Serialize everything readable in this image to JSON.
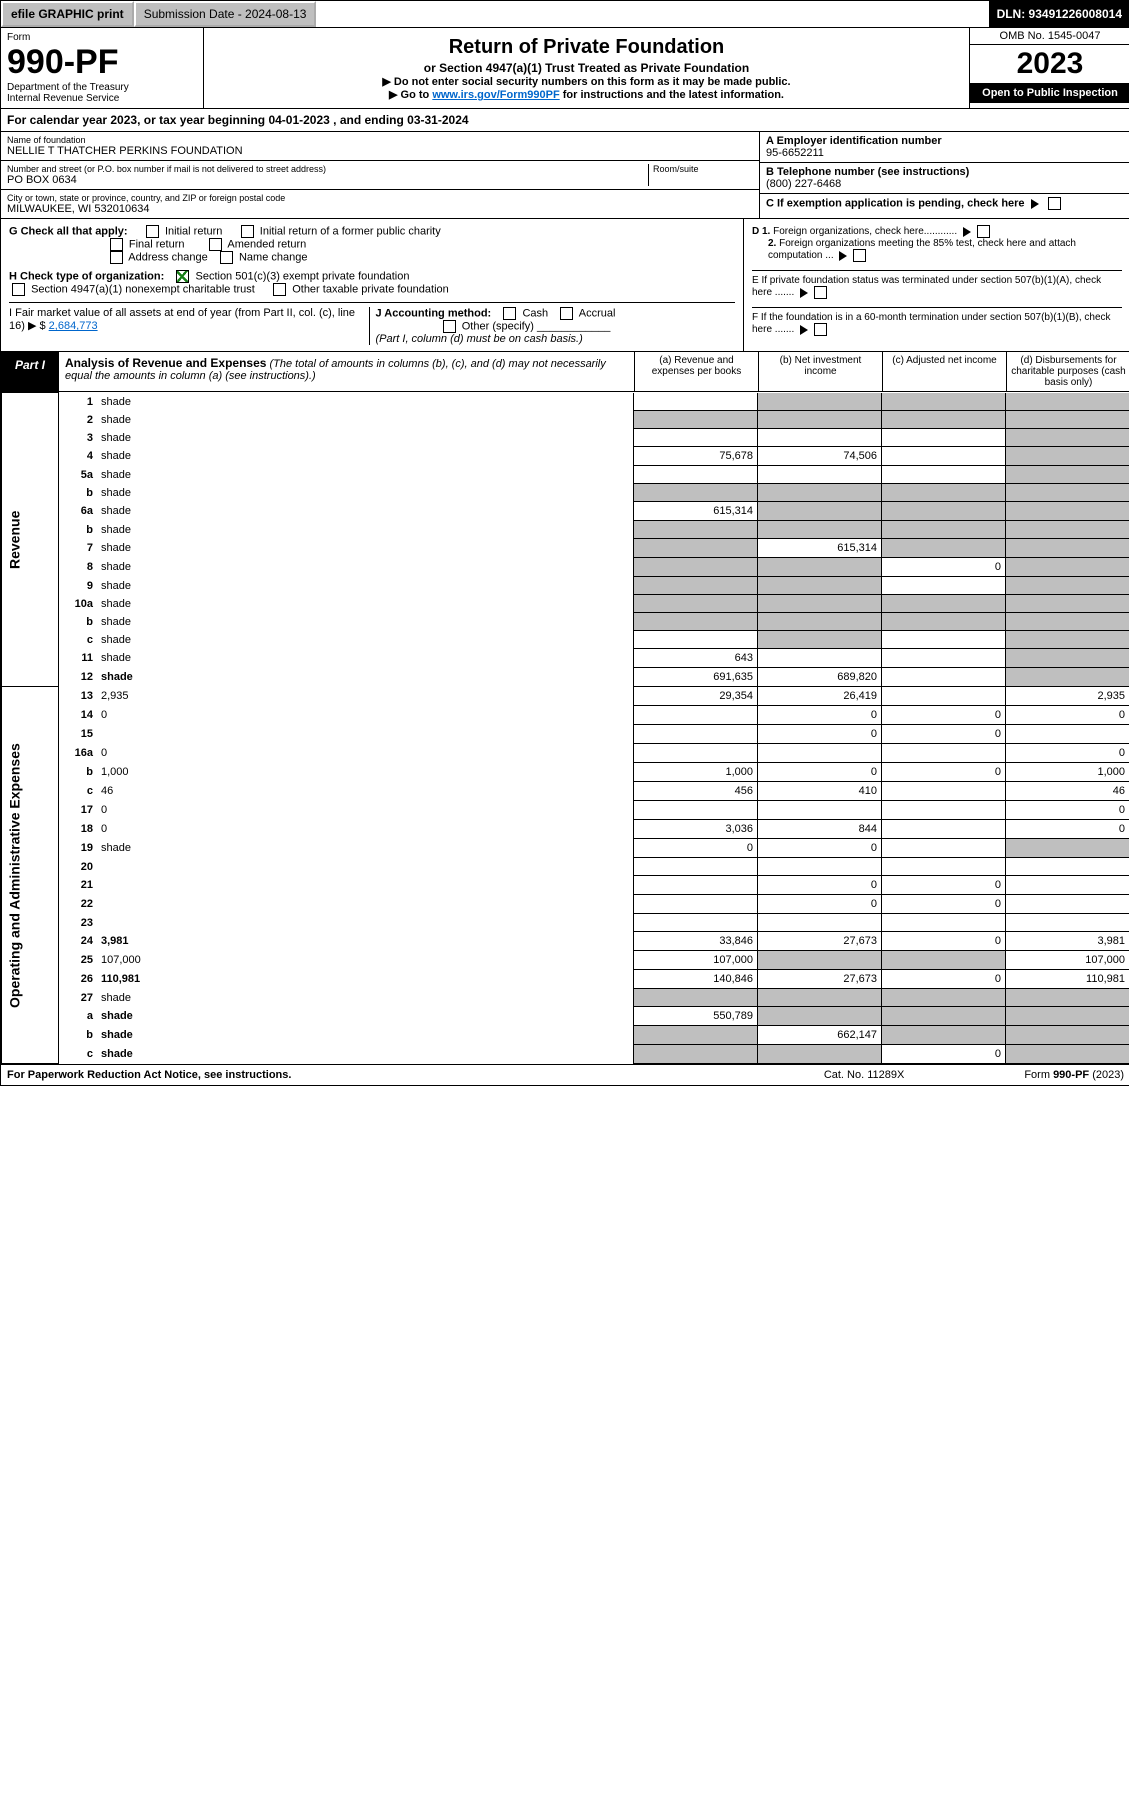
{
  "topbar": {
    "efile_btn": "efile GRAPHIC print",
    "submission_label": "Submission Date - 2024-08-13",
    "dln": "DLN: 93491226008014"
  },
  "header": {
    "form_label": "Form",
    "form_no": "990-PF",
    "dept": "Department of the Treasury",
    "irs": "Internal Revenue Service",
    "title": "Return of Private Foundation",
    "subtitle": "or Section 4947(a)(1) Trust Treated as Private Foundation",
    "note1": "▶ Do not enter social security numbers on this form as it may be made public.",
    "note2_pre": "▶ Go to ",
    "note2_link": "www.irs.gov/Form990PF",
    "note2_post": " for instructions and the latest information.",
    "omb": "OMB No. 1545-0047",
    "year": "2023",
    "open": "Open to Public Inspection"
  },
  "cal": {
    "text": "For calendar year 2023, or tax year beginning 04-01-2023                                         , and ending 03-31-2024"
  },
  "info": {
    "name_lbl": "Name of foundation",
    "name": "NELLIE T THATCHER PERKINS FOUNDATION",
    "addr_lbl": "Number and street (or P.O. box number if mail is not delivered to street address)",
    "room_lbl": "Room/suite",
    "addr": "PO BOX 0634",
    "city_lbl": "City or town, state or province, country, and ZIP or foreign postal code",
    "city": "MILWAUKEE, WI  532010634",
    "ein_lbl": "A Employer identification number",
    "ein": "95-6652211",
    "phone_lbl": "B Telephone number (see instructions)",
    "phone": "(800) 227-6468",
    "c_lbl": "C If exemption application is pending, check here"
  },
  "checks": {
    "g_label": "G Check all that apply:",
    "g1": "Initial return",
    "g2": "Initial return of a former public charity",
    "g3": "Final return",
    "g4": "Amended return",
    "g5": "Address change",
    "g6": "Name change",
    "h_label": "H Check type of organization:",
    "h1": "Section 501(c)(3) exempt private foundation",
    "h2": "Section 4947(a)(1) nonexempt charitable trust",
    "h3": "Other taxable private foundation",
    "i_label": "I Fair market value of all assets at end of year (from Part II, col. (c), line 16) ▶ $",
    "i_val": "2,684,773",
    "j_label": "J Accounting method:",
    "j1": "Cash",
    "j2": "Accrual",
    "j3": "Other (specify)",
    "j_note": "(Part I, column (d) must be on cash basis.)",
    "d1": "D 1. Foreign organizations, check here............",
    "d2": "2. Foreign organizations meeting the 85% test, check here and attach computation ...",
    "e": "E  If private foundation status was terminated under section 507(b)(1)(A), check here .......",
    "f": "F  If the foundation is in a 60-month termination under section 507(b)(1)(B), check here ......."
  },
  "part1": {
    "tag": "Part I",
    "title": "Analysis of Revenue and Expenses",
    "note": " (The total of amounts in columns (b), (c), and (d) may not necessarily equal the amounts in column (a) (see instructions).)",
    "col_a": "(a)   Revenue and expenses per books",
    "col_b": "(b)   Net investment income",
    "col_c": "(c)  Adjusted net income",
    "col_d": "(d)  Disbursements for charitable purposes (cash basis only)"
  },
  "side_labels": {
    "rev": "Revenue",
    "exp": "Operating and Administrative Expenses"
  },
  "rows": [
    {
      "n": "1",
      "d": "shade",
      "a": "",
      "b": "shade",
      "c": "shade"
    },
    {
      "n": "2",
      "d": "shade",
      "a": "shade",
      "b": "shade",
      "c": "shade"
    },
    {
      "n": "3",
      "d": "shade",
      "a": "",
      "b": "",
      "c": ""
    },
    {
      "n": "4",
      "d": "shade",
      "a": "75,678",
      "b": "74,506",
      "c": ""
    },
    {
      "n": "5a",
      "d": "shade",
      "a": "",
      "b": "",
      "c": ""
    },
    {
      "n": "b",
      "d": "shade",
      "a": "shade",
      "b": "shade",
      "c": "shade"
    },
    {
      "n": "6a",
      "d": "shade",
      "a": "615,314",
      "b": "shade",
      "c": "shade"
    },
    {
      "n": "b",
      "d": "shade",
      "a": "shade",
      "b": "shade",
      "c": "shade"
    },
    {
      "n": "7",
      "d": "shade",
      "a": "shade",
      "b": "615,314",
      "c": "shade"
    },
    {
      "n": "8",
      "d": "shade",
      "a": "shade",
      "b": "shade",
      "c": "0"
    },
    {
      "n": "9",
      "d": "shade",
      "a": "shade",
      "b": "shade",
      "c": ""
    },
    {
      "n": "10a",
      "d": "shade",
      "a": "shade",
      "b": "shade",
      "c": "shade"
    },
    {
      "n": "b",
      "d": "shade",
      "a": "shade",
      "b": "shade",
      "c": "shade"
    },
    {
      "n": "c",
      "d": "shade",
      "a": "",
      "b": "shade",
      "c": ""
    },
    {
      "n": "11",
      "d": "shade",
      "a": "643",
      "b": "",
      "c": ""
    },
    {
      "n": "12",
      "d": "shade",
      "a": "691,635",
      "b": "689,820",
      "c": "",
      "bold": true
    },
    {
      "n": "13",
      "d": "2,935",
      "a": "29,354",
      "b": "26,419",
      "c": ""
    },
    {
      "n": "14",
      "d": "0",
      "a": "",
      "b": "0",
      "c": "0"
    },
    {
      "n": "15",
      "d": "",
      "a": "",
      "b": "0",
      "c": "0"
    },
    {
      "n": "16a",
      "d": "0",
      "a": "",
      "b": "",
      "c": ""
    },
    {
      "n": "b",
      "d": "1,000",
      "a": "1,000",
      "b": "0",
      "c": "0"
    },
    {
      "n": "c",
      "d": "46",
      "a": "456",
      "b": "410",
      "c": ""
    },
    {
      "n": "17",
      "d": "0",
      "a": "",
      "b": "",
      "c": ""
    },
    {
      "n": "18",
      "d": "0",
      "a": "3,036",
      "b": "844",
      "c": ""
    },
    {
      "n": "19",
      "d": "shade",
      "a": "0",
      "b": "0",
      "c": ""
    },
    {
      "n": "20",
      "d": "",
      "a": "",
      "b": "",
      "c": ""
    },
    {
      "n": "21",
      "d": "",
      "a": "",
      "b": "0",
      "c": "0"
    },
    {
      "n": "22",
      "d": "",
      "a": "",
      "b": "0",
      "c": "0"
    },
    {
      "n": "23",
      "d": "",
      "a": "",
      "b": "",
      "c": ""
    },
    {
      "n": "24",
      "d": "3,981",
      "a": "33,846",
      "b": "27,673",
      "c": "0",
      "bold": true
    },
    {
      "n": "25",
      "d": "107,000",
      "a": "107,000",
      "b": "shade",
      "c": "shade"
    },
    {
      "n": "26",
      "d": "110,981",
      "a": "140,846",
      "b": "27,673",
      "c": "0",
      "bold": true
    },
    {
      "n": "27",
      "d": "shade",
      "a": "shade",
      "b": "shade",
      "c": "shade"
    },
    {
      "n": "a",
      "d": "shade",
      "a": "550,789",
      "b": "shade",
      "c": "shade",
      "bold": true
    },
    {
      "n": "b",
      "d": "shade",
      "a": "shade",
      "b": "662,147",
      "c": "shade",
      "bold": true
    },
    {
      "n": "c",
      "d": "shade",
      "a": "shade",
      "b": "shade",
      "c": "0",
      "bold": true
    }
  ],
  "footer": {
    "l": "For Paperwork Reduction Act Notice, see instructions.",
    "c": "Cat. No. 11289X",
    "r": "Form 990-PF (2023)"
  }
}
